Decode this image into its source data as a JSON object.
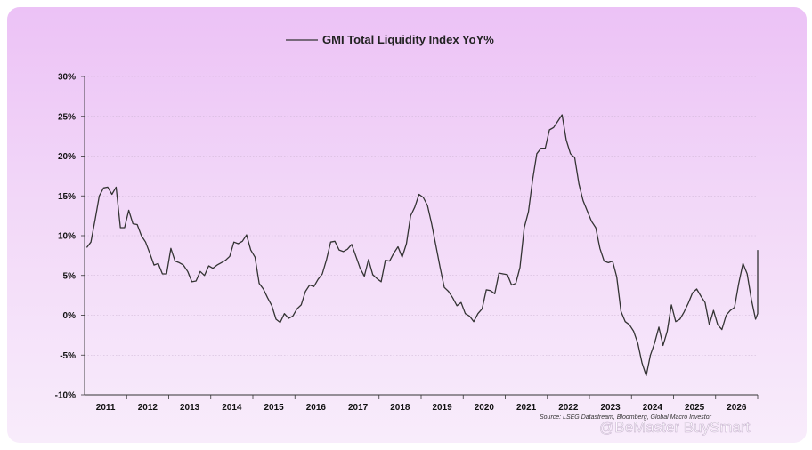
{
  "chart_data": {
    "type": "line",
    "title": "GMI Total Liquidity Index YoY%",
    "xlabel": "",
    "ylabel": "",
    "x_ticks": [
      "2011",
      "2012",
      "2013",
      "2014",
      "2015",
      "2016",
      "2017",
      "2018",
      "2019",
      "2020",
      "2021",
      "2022",
      "2023",
      "2024",
      "2025",
      "2026"
    ],
    "xlim": [
      2010.5,
      2026.5
    ],
    "y_ticks": [
      "30%",
      "25%",
      "20%",
      "15%",
      "10%",
      "5%",
      "0%",
      "-5%",
      "-10%"
    ],
    "ylim": [
      -10,
      30
    ],
    "grid": true,
    "legend": "top-center",
    "line_color": "#333333",
    "series": [
      {
        "name": "GMI Total Liquidity Index YoY%",
        "points": [
          [
            2010.55,
            8.5
          ],
          [
            2010.65,
            9.2
          ],
          [
            2010.75,
            12.0
          ],
          [
            2010.85,
            15.0
          ],
          [
            2010.95,
            16.0
          ],
          [
            2011.05,
            16.1
          ],
          [
            2011.15,
            15.2
          ],
          [
            2011.25,
            16.1
          ],
          [
            2011.35,
            11.0
          ],
          [
            2011.45,
            11.0
          ],
          [
            2011.55,
            13.2
          ],
          [
            2011.65,
            11.5
          ],
          [
            2011.75,
            11.4
          ],
          [
            2011.85,
            10.0
          ],
          [
            2011.95,
            9.2
          ],
          [
            2012.05,
            7.8
          ],
          [
            2012.15,
            6.3
          ],
          [
            2012.25,
            6.5
          ],
          [
            2012.35,
            5.2
          ],
          [
            2012.45,
            5.2
          ],
          [
            2012.55,
            8.4
          ],
          [
            2012.65,
            6.8
          ],
          [
            2012.75,
            6.6
          ],
          [
            2012.85,
            6.3
          ],
          [
            2012.95,
            5.5
          ],
          [
            2013.05,
            4.2
          ],
          [
            2013.15,
            4.3
          ],
          [
            2013.25,
            5.5
          ],
          [
            2013.35,
            5.0
          ],
          [
            2013.45,
            6.2
          ],
          [
            2013.55,
            5.9
          ],
          [
            2013.65,
            6.3
          ],
          [
            2013.75,
            6.6
          ],
          [
            2013.85,
            6.9
          ],
          [
            2013.95,
            7.4
          ],
          [
            2014.05,
            9.2
          ],
          [
            2014.15,
            9.0
          ],
          [
            2014.25,
            9.3
          ],
          [
            2014.35,
            10.1
          ],
          [
            2014.45,
            8.2
          ],
          [
            2014.55,
            7.3
          ],
          [
            2014.65,
            4.0
          ],
          [
            2014.75,
            3.3
          ],
          [
            2014.85,
            2.2
          ],
          [
            2014.95,
            1.2
          ],
          [
            2015.05,
            -0.5
          ],
          [
            2015.15,
            -0.9
          ],
          [
            2015.25,
            0.2
          ],
          [
            2015.35,
            -0.4
          ],
          [
            2015.45,
            -0.1
          ],
          [
            2015.55,
            0.8
          ],
          [
            2015.65,
            1.3
          ],
          [
            2015.75,
            3.0
          ],
          [
            2015.85,
            3.8
          ],
          [
            2015.95,
            3.6
          ],
          [
            2016.05,
            4.5
          ],
          [
            2016.15,
            5.2
          ],
          [
            2016.25,
            7.0
          ],
          [
            2016.35,
            9.2
          ],
          [
            2016.45,
            9.3
          ],
          [
            2016.55,
            8.2
          ],
          [
            2016.65,
            8.0
          ],
          [
            2016.75,
            8.3
          ],
          [
            2016.85,
            8.9
          ],
          [
            2016.95,
            7.4
          ],
          [
            2017.05,
            5.9
          ],
          [
            2017.15,
            4.9
          ],
          [
            2017.25,
            7.0
          ],
          [
            2017.35,
            5.1
          ],
          [
            2017.45,
            4.6
          ],
          [
            2017.55,
            4.2
          ],
          [
            2017.65,
            6.9
          ],
          [
            2017.75,
            6.8
          ],
          [
            2017.85,
            7.8
          ],
          [
            2017.95,
            8.6
          ],
          [
            2018.05,
            7.3
          ],
          [
            2018.15,
            9.0
          ],
          [
            2018.25,
            12.5
          ],
          [
            2018.35,
            13.6
          ],
          [
            2018.45,
            15.2
          ],
          [
            2018.55,
            14.8
          ],
          [
            2018.65,
            13.8
          ],
          [
            2018.75,
            11.5
          ],
          [
            2018.85,
            8.8
          ],
          [
            2018.95,
            6.0
          ],
          [
            2019.05,
            3.5
          ],
          [
            2019.15,
            3.0
          ],
          [
            2019.25,
            2.2
          ],
          [
            2019.35,
            1.2
          ],
          [
            2019.45,
            1.6
          ],
          [
            2019.55,
            0.2
          ],
          [
            2019.65,
            -0.1
          ],
          [
            2019.75,
            -0.8
          ],
          [
            2019.85,
            0.2
          ],
          [
            2019.95,
            0.8
          ],
          [
            2020.05,
            3.2
          ],
          [
            2020.15,
            3.1
          ],
          [
            2020.25,
            2.7
          ],
          [
            2020.35,
            5.3
          ],
          [
            2020.45,
            5.2
          ],
          [
            2020.55,
            5.1
          ],
          [
            2020.65,
            3.8
          ],
          [
            2020.75,
            4.0
          ],
          [
            2020.85,
            6.0
          ],
          [
            2020.95,
            11.0
          ],
          [
            2021.05,
            13.0
          ],
          [
            2021.15,
            17.0
          ],
          [
            2021.25,
            20.3
          ],
          [
            2021.35,
            21.0
          ],
          [
            2021.45,
            21.0
          ],
          [
            2021.55,
            23.3
          ],
          [
            2021.65,
            23.6
          ],
          [
            2021.75,
            24.4
          ],
          [
            2021.85,
            25.2
          ],
          [
            2021.95,
            22.0
          ],
          [
            2022.05,
            20.3
          ],
          [
            2022.15,
            19.8
          ],
          [
            2022.25,
            16.5
          ],
          [
            2022.35,
            14.4
          ],
          [
            2022.45,
            13.1
          ],
          [
            2022.55,
            11.8
          ],
          [
            2022.65,
            11.0
          ],
          [
            2022.75,
            8.4
          ],
          [
            2022.85,
            6.8
          ],
          [
            2022.95,
            6.6
          ],
          [
            2023.05,
            6.8
          ],
          [
            2023.15,
            4.8
          ],
          [
            2023.25,
            0.5
          ],
          [
            2023.35,
            -0.8
          ],
          [
            2023.45,
            -1.2
          ],
          [
            2023.55,
            -2.0
          ],
          [
            2023.65,
            -3.5
          ],
          [
            2023.75,
            -6.0
          ],
          [
            2023.85,
            -7.6
          ],
          [
            2023.95,
            -5.0
          ],
          [
            2024.05,
            -3.5
          ],
          [
            2024.15,
            -1.5
          ],
          [
            2024.25,
            -3.8
          ],
          [
            2024.35,
            -2.0
          ],
          [
            2024.45,
            1.3
          ],
          [
            2024.55,
            -0.8
          ],
          [
            2024.65,
            -0.5
          ],
          [
            2024.75,
            0.4
          ],
          [
            2024.85,
            1.5
          ],
          [
            2024.95,
            2.8
          ],
          [
            2025.05,
            3.3
          ],
          [
            2025.15,
            2.4
          ],
          [
            2025.25,
            1.6
          ],
          [
            2025.35,
            -1.2
          ],
          [
            2025.45,
            0.6
          ],
          [
            2025.55,
            -1.2
          ],
          [
            2025.65,
            -1.8
          ],
          [
            2025.75,
            0.0
          ],
          [
            2025.85,
            0.6
          ],
          [
            2025.95,
            1.0
          ],
          [
            2026.05,
            4.0
          ],
          [
            2026.15,
            6.5
          ],
          [
            2026.25,
            5.2
          ],
          [
            2026.35,
            2.0
          ],
          [
            2026.45,
            -0.5
          ],
          [
            2026.55,
            0.2
          ],
          [
            2026.65,
            1.5
          ],
          [
            2026.75,
            3.6
          ],
          [
            2026.85,
            6.2
          ],
          [
            2026.95,
            6.4
          ],
          [
            2027.05,
            8.2
          ]
        ]
      }
    ]
  },
  "source_text": "Source: LSEG Datastream, Bloomberg, Global Macro Investor",
  "watermark_text": "@BeMaster BuySmart"
}
